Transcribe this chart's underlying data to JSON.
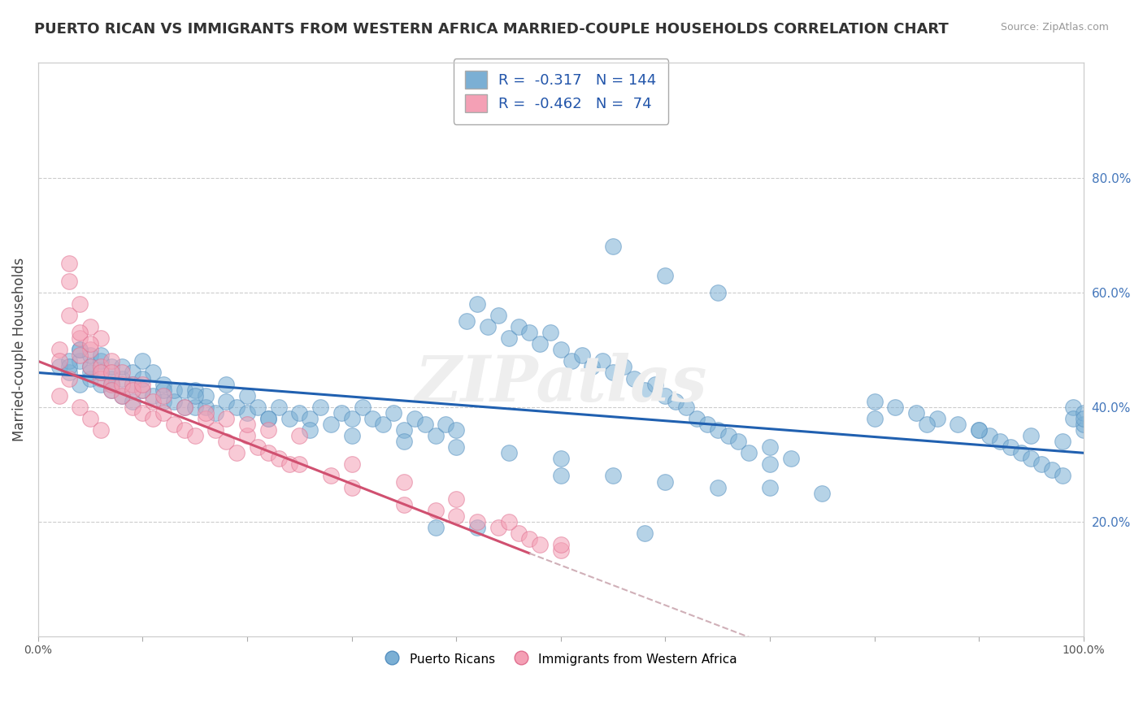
{
  "title": "PUERTO RICAN VS IMMIGRANTS FROM WESTERN AFRICA MARRIED-COUPLE HOUSEHOLDS CORRELATION CHART",
  "source": "Source: ZipAtlas.com",
  "ylabel": "Married-couple Households",
  "xlim": [
    0,
    1.0
  ],
  "ylim": [
    0,
    1.0
  ],
  "xtick_positions": [
    0.0,
    0.1,
    0.2,
    0.3,
    0.4,
    0.5,
    0.6,
    0.7,
    0.8,
    0.9,
    1.0
  ],
  "xticklabels": [
    "0.0%",
    "",
    "",
    "",
    "",
    "",
    "",
    "",
    "",
    "",
    "100.0%"
  ],
  "yticks_right": [
    0.2,
    0.4,
    0.6,
    0.8
  ],
  "ytick_right_labels": [
    "20.0%",
    "40.0%",
    "60.0%",
    "80.0%"
  ],
  "blue_color": "#7bafd4",
  "pink_color": "#f4a0b5",
  "blue_edge": "#5590c0",
  "pink_edge": "#e07090",
  "legend_blue_r": "-0.317",
  "legend_blue_n": "144",
  "legend_pink_r": "-0.462",
  "legend_pink_n": "74",
  "legend_label_blue": "Puerto Ricans",
  "legend_label_pink": "Immigrants from Western Africa",
  "watermark": "ZIPatlas",
  "background_color": "#ffffff",
  "grid_color": "#cccccc",
  "title_fontsize": 13,
  "axis_fontsize": 12,
  "blue_scatter_x": [
    0.02,
    0.03,
    0.03,
    0.04,
    0.04,
    0.04,
    0.05,
    0.05,
    0.05,
    0.05,
    0.06,
    0.06,
    0.06,
    0.07,
    0.07,
    0.07,
    0.08,
    0.08,
    0.08,
    0.09,
    0.09,
    0.1,
    0.1,
    0.11,
    0.11,
    0.12,
    0.12,
    0.13,
    0.13,
    0.14,
    0.14,
    0.15,
    0.15,
    0.16,
    0.16,
    0.17,
    0.18,
    0.19,
    0.2,
    0.2,
    0.21,
    0.22,
    0.23,
    0.24,
    0.25,
    0.26,
    0.27,
    0.28,
    0.29,
    0.3,
    0.31,
    0.32,
    0.33,
    0.34,
    0.35,
    0.36,
    0.37,
    0.38,
    0.39,
    0.4,
    0.41,
    0.42,
    0.43,
    0.44,
    0.45,
    0.46,
    0.47,
    0.48,
    0.49,
    0.5,
    0.51,
    0.52,
    0.53,
    0.54,
    0.55,
    0.56,
    0.57,
    0.58,
    0.59,
    0.6,
    0.61,
    0.62,
    0.63,
    0.64,
    0.65,
    0.66,
    0.67,
    0.68,
    0.7,
    0.72,
    0.8,
    0.82,
    0.84,
    0.86,
    0.88,
    0.9,
    0.91,
    0.92,
    0.93,
    0.94,
    0.95,
    0.96,
    0.97,
    0.98,
    0.99,
    0.99,
    1.0,
    1.0,
    1.0,
    1.0,
    0.03,
    0.04,
    0.06,
    0.07,
    0.09,
    0.1,
    0.12,
    0.15,
    0.18,
    0.22,
    0.26,
    0.3,
    0.35,
    0.4,
    0.45,
    0.5,
    0.55,
    0.6,
    0.65,
    0.7,
    0.75,
    0.8,
    0.85,
    0.9,
    0.95,
    0.98,
    0.5,
    0.55,
    0.6,
    0.65,
    0.7,
    0.38,
    0.42,
    0.58
  ],
  "blue_scatter_y": [
    0.47,
    0.46,
    0.48,
    0.44,
    0.48,
    0.5,
    0.45,
    0.46,
    0.47,
    0.49,
    0.44,
    0.46,
    0.48,
    0.43,
    0.45,
    0.47,
    0.42,
    0.45,
    0.47,
    0.44,
    0.46,
    0.43,
    0.48,
    0.42,
    0.46,
    0.41,
    0.44,
    0.41,
    0.43,
    0.4,
    0.43,
    0.4,
    0.43,
    0.4,
    0.42,
    0.39,
    0.41,
    0.4,
    0.39,
    0.42,
    0.4,
    0.38,
    0.4,
    0.38,
    0.39,
    0.38,
    0.4,
    0.37,
    0.39,
    0.38,
    0.4,
    0.38,
    0.37,
    0.39,
    0.36,
    0.38,
    0.37,
    0.35,
    0.37,
    0.36,
    0.55,
    0.58,
    0.54,
    0.56,
    0.52,
    0.54,
    0.53,
    0.51,
    0.53,
    0.5,
    0.48,
    0.49,
    0.47,
    0.48,
    0.46,
    0.47,
    0.45,
    0.43,
    0.44,
    0.42,
    0.41,
    0.4,
    0.38,
    0.37,
    0.36,
    0.35,
    0.34,
    0.32,
    0.33,
    0.31,
    0.41,
    0.4,
    0.39,
    0.38,
    0.37,
    0.36,
    0.35,
    0.34,
    0.33,
    0.32,
    0.31,
    0.3,
    0.29,
    0.28,
    0.4,
    0.38,
    0.36,
    0.37,
    0.39,
    0.38,
    0.47,
    0.5,
    0.49,
    0.44,
    0.41,
    0.45,
    0.43,
    0.42,
    0.44,
    0.38,
    0.36,
    0.35,
    0.34,
    0.33,
    0.32,
    0.31,
    0.68,
    0.63,
    0.6,
    0.3,
    0.25,
    0.38,
    0.37,
    0.36,
    0.35,
    0.34,
    0.28,
    0.28,
    0.27,
    0.26,
    0.26,
    0.19,
    0.19,
    0.18
  ],
  "pink_scatter_x": [
    0.02,
    0.03,
    0.03,
    0.04,
    0.04,
    0.05,
    0.05,
    0.05,
    0.06,
    0.06,
    0.06,
    0.07,
    0.07,
    0.07,
    0.08,
    0.08,
    0.09,
    0.09,
    0.1,
    0.1,
    0.11,
    0.11,
    0.12,
    0.13,
    0.14,
    0.15,
    0.16,
    0.17,
    0.18,
    0.19,
    0.2,
    0.21,
    0.22,
    0.23,
    0.24,
    0.25,
    0.28,
    0.3,
    0.35,
    0.38,
    0.4,
    0.42,
    0.44,
    0.46,
    0.47,
    0.48,
    0.5,
    0.02,
    0.03,
    0.04,
    0.04,
    0.05,
    0.06,
    0.07,
    0.08,
    0.09,
    0.1,
    0.12,
    0.14,
    0.16,
    0.18,
    0.2,
    0.22,
    0.25,
    0.3,
    0.35,
    0.4,
    0.45,
    0.5,
    0.02,
    0.03,
    0.04,
    0.05,
    0.06
  ],
  "pink_scatter_y": [
    0.5,
    0.62,
    0.56,
    0.58,
    0.52,
    0.54,
    0.5,
    0.47,
    0.52,
    0.47,
    0.45,
    0.48,
    0.44,
    0.43,
    0.46,
    0.42,
    0.44,
    0.4,
    0.43,
    0.39,
    0.41,
    0.38,
    0.39,
    0.37,
    0.36,
    0.35,
    0.38,
    0.36,
    0.34,
    0.32,
    0.35,
    0.33,
    0.32,
    0.31,
    0.3,
    0.3,
    0.28,
    0.26,
    0.23,
    0.22,
    0.21,
    0.2,
    0.19,
    0.18,
    0.17,
    0.16,
    0.15,
    0.48,
    0.45,
    0.53,
    0.49,
    0.51,
    0.46,
    0.46,
    0.44,
    0.43,
    0.44,
    0.42,
    0.4,
    0.39,
    0.38,
    0.37,
    0.36,
    0.35,
    0.3,
    0.27,
    0.24,
    0.2,
    0.16,
    0.42,
    0.65,
    0.4,
    0.38,
    0.36
  ],
  "blue_trend": [
    0.0,
    0.46,
    1.0,
    0.32
  ],
  "pink_trend": [
    0.0,
    0.48,
    0.47,
    0.145
  ]
}
